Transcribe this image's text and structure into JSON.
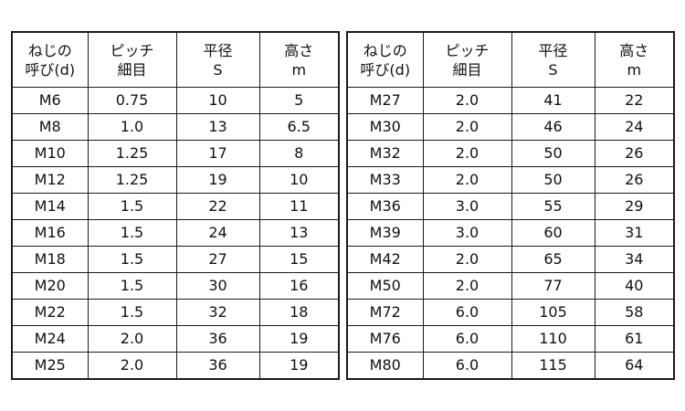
{
  "headers": [
    {
      "line1": "ねじの",
      "line2": "呼び(d)"
    },
    {
      "line1": "ピッチ",
      "line2": "細目"
    },
    {
      "line1": "平径",
      "line2": "S"
    },
    {
      "line1": "高さ",
      "line2": "m"
    }
  ],
  "left_rows": [
    [
      "M6",
      "0.75",
      "10",
      "5"
    ],
    [
      "M8",
      "1.0",
      "13",
      "6.5"
    ],
    [
      "M10",
      "1.25",
      "17",
      "8"
    ],
    [
      "M12",
      "1.25",
      "19",
      "10"
    ],
    [
      "M14",
      "1.5",
      "22",
      "11"
    ],
    [
      "M16",
      "1.5",
      "24",
      "13"
    ],
    [
      "M18",
      "1.5",
      "27",
      "15"
    ],
    [
      "M20",
      "1.5",
      "30",
      "16"
    ],
    [
      "M22",
      "1.5",
      "32",
      "18"
    ],
    [
      "M24",
      "2.0",
      "36",
      "19"
    ],
    [
      "M25",
      "2.0",
      "36",
      "19"
    ]
  ],
  "right_rows": [
    [
      "M27",
      "2.0",
      "41",
      "22"
    ],
    [
      "M30",
      "2.0",
      "46",
      "24"
    ],
    [
      "M32",
      "2.0",
      "50",
      "26"
    ],
    [
      "M33",
      "2.0",
      "50",
      "26"
    ],
    [
      "M36",
      "3.0",
      "55",
      "29"
    ],
    [
      "M39",
      "3.0",
      "60",
      "31"
    ],
    [
      "M42",
      "2.0",
      "65",
      "34"
    ],
    [
      "M50",
      "2.0",
      "77",
      "40"
    ],
    [
      "M72",
      "6.0",
      "105",
      "58"
    ],
    [
      "M76",
      "6.0",
      "110",
      "61"
    ],
    [
      "M80",
      "6.0",
      "115",
      "64"
    ]
  ]
}
